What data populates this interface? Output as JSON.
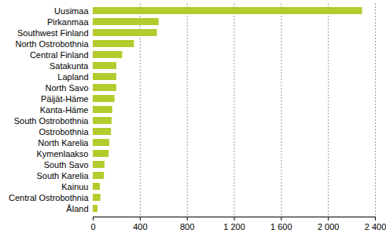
{
  "chart_data": {
    "type": "bar",
    "orientation": "horizontal",
    "categories": [
      "Uusimaa",
      "Pirkanmaa",
      "Southwest Finland",
      "North Ostrobothnia",
      "Central Finland",
      "Satakunta",
      "Lapland",
      "North Savo",
      "Päijät-Häme",
      "Kanta-Häme",
      "South Ostrobothnia",
      "Ostrobothnia",
      "North Karelia",
      "Kymenlaakso",
      "South Savo",
      "South Karelia",
      "Kainuu",
      "Central Ostrobothnia",
      "Åland"
    ],
    "values": [
      2290,
      560,
      545,
      350,
      250,
      200,
      200,
      200,
      185,
      165,
      160,
      155,
      140,
      135,
      100,
      95,
      60,
      65,
      40
    ],
    "color": "#b3cb2d",
    "xlim": [
      0,
      2400
    ],
    "xticks": [
      0,
      400,
      800,
      {
        "value": 1200,
        "label": "1 200"
      },
      {
        "value": 1600,
        "label": "1 600"
      },
      {
        "value": 2000,
        "label": "2 000"
      },
      {
        "value": 2400,
        "label": "2 400"
      }
    ],
    "grid": true
  }
}
